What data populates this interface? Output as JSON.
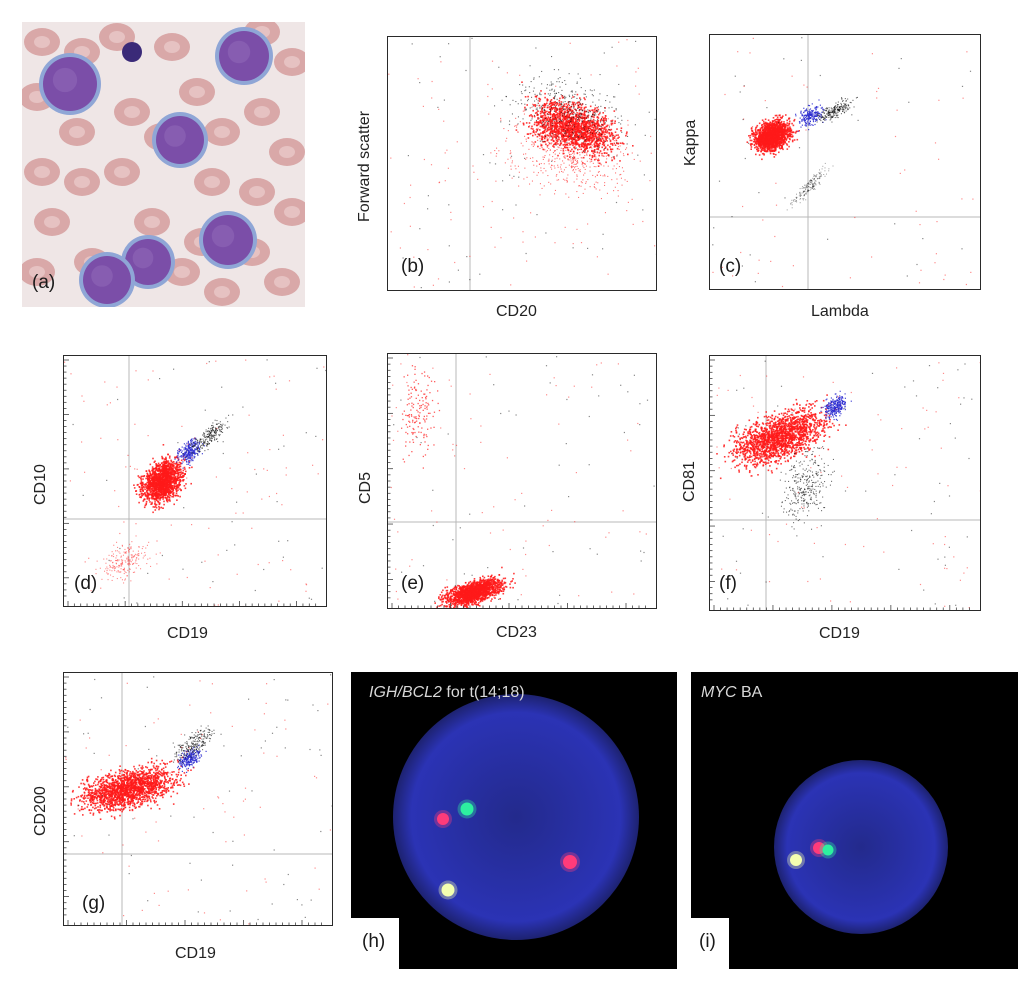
{
  "panels": {
    "a": {
      "letter": "(a)"
    },
    "b": {
      "letter": "(b)",
      "xlabel": "CD20",
      "ylabel": "Forward scatter"
    },
    "c": {
      "letter": "(c)",
      "xlabel": "Lambda",
      "ylabel": "Kappa"
    },
    "d": {
      "letter": "(d)",
      "xlabel": "CD19",
      "ylabel": "CD10"
    },
    "e": {
      "letter": "(e)",
      "xlabel": "CD23",
      "ylabel": "CD5"
    },
    "f": {
      "letter": "(f)",
      "xlabel": "CD19",
      "ylabel": "CD81"
    },
    "g": {
      "letter": "(g)",
      "xlabel": "CD19",
      "ylabel": "CD200"
    },
    "h": {
      "letter": "(h)",
      "caption_italic": "IGH/BCL2",
      "caption_rest": " for t(14;18)"
    },
    "i": {
      "letter": "(i)",
      "caption_italic": "MYC",
      "caption_rest": " BA"
    }
  },
  "colors": {
    "cells": "#ff1a1a",
    "blue_cells": "#2b2bd0",
    "other_events": "#111111",
    "background": "#ffffff",
    "fish_background": "#000000",
    "nucleus": "#2a2fa8",
    "red_signal": "#ff3b7a",
    "green_signal": "#2df0a0",
    "fusion_signal": "#f4ffb0",
    "rbc": "#d9a8a8",
    "lymphoma_cell": "#7b4ea8"
  }
}
